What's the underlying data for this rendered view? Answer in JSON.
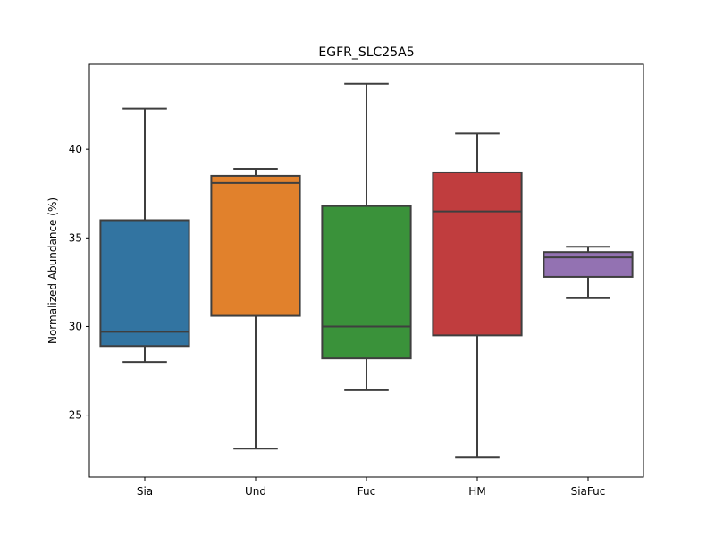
{
  "chart_data": {
    "type": "box",
    "title": "EGFR_SLC25A5",
    "xlabel": "",
    "ylabel": "Normalized Abundance (%)",
    "ylim": [
      21.5,
      44.8
    ],
    "yticks": [
      25,
      30,
      35,
      40
    ],
    "grid": false,
    "legend": "none",
    "categories": [
      "Sia",
      "Und",
      "Fuc",
      "HM",
      "SiaFuc"
    ],
    "boxes": [
      {
        "category": "Sia",
        "min": 28.0,
        "q1": 28.9,
        "median": 29.7,
        "q3": 36.0,
        "max": 42.3,
        "color": "#3274a1"
      },
      {
        "category": "Und",
        "min": 23.1,
        "q1": 30.6,
        "median": 38.1,
        "q3": 38.5,
        "max": 38.9,
        "color": "#e1812c"
      },
      {
        "category": "Fuc",
        "min": 26.4,
        "q1": 28.2,
        "median": 30.0,
        "q3": 36.8,
        "max": 43.7,
        "color": "#3a923a"
      },
      {
        "category": "HM",
        "min": 22.6,
        "q1": 29.5,
        "median": 36.5,
        "q3": 38.7,
        "max": 40.9,
        "color": "#c03d3e"
      },
      {
        "category": "SiaFuc",
        "min": 31.6,
        "q1": 32.8,
        "median": 33.9,
        "q3": 34.2,
        "max": 34.5,
        "color": "#9372b2"
      }
    ]
  }
}
